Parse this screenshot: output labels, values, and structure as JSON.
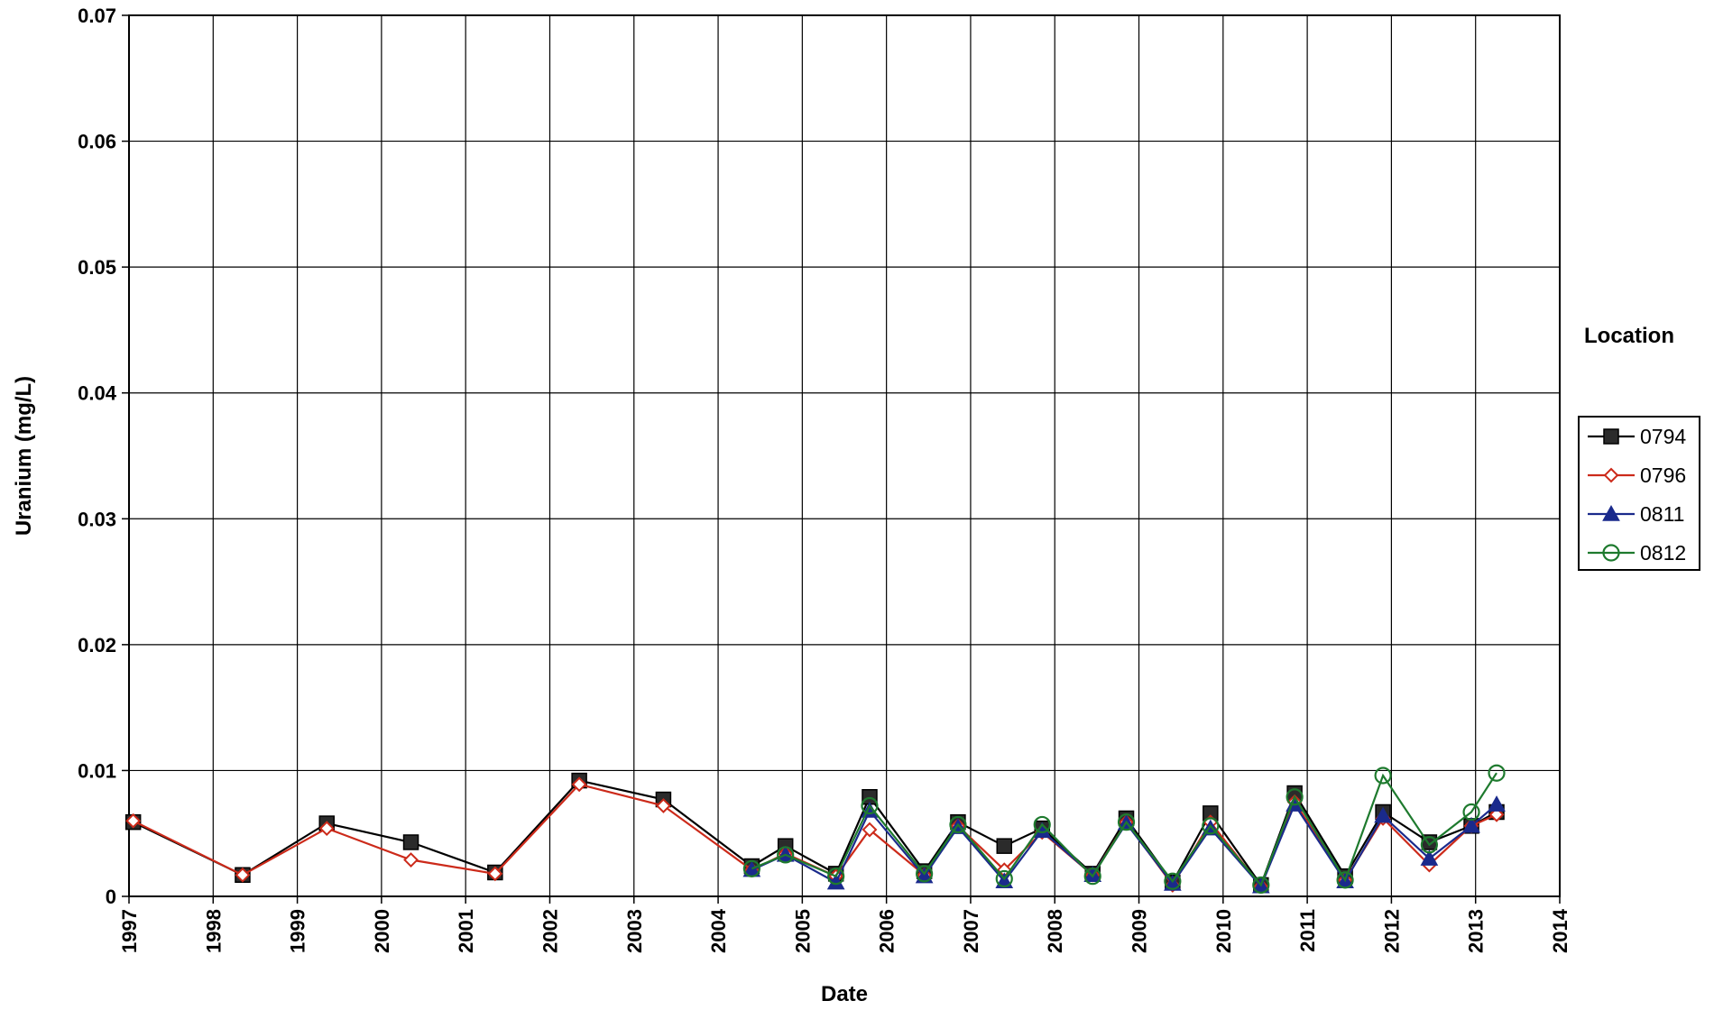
{
  "chart_data": {
    "type": "line",
    "title": "",
    "xlabel": "Date",
    "ylabel": "Uranium (mg/L)",
    "xlim": [
      1997,
      2014
    ],
    "ylim": [
      0,
      0.07
    ],
    "x_ticks": [
      "1997",
      "1998",
      "1999",
      "2000",
      "2001",
      "2002",
      "2003",
      "2004",
      "2005",
      "2006",
      "2007",
      "2008",
      "2009",
      "2010",
      "2011",
      "2012",
      "2013",
      "2014"
    ],
    "y_ticks": [
      {
        "value": 0,
        "label": "0"
      },
      {
        "value": 0.01,
        "label": "0.01"
      },
      {
        "value": 0.02,
        "label": "0.02"
      },
      {
        "value": 0.03,
        "label": "0.03"
      },
      {
        "value": 0.04,
        "label": "0.04"
      },
      {
        "value": 0.05,
        "label": "0.05"
      },
      {
        "value": 0.06,
        "label": "0.06"
      },
      {
        "value": 0.07,
        "label": "0.07"
      }
    ],
    "grid": true,
    "legend": {
      "title": "Location",
      "position": "right"
    },
    "series": [
      {
        "name": "0794",
        "color": "#000000",
        "marker": "filled-square",
        "points": [
          [
            1997.05,
            0.0059
          ],
          [
            1998.35,
            0.0017
          ],
          [
            1999.35,
            0.0058
          ],
          [
            2000.35,
            0.0043
          ],
          [
            2001.35,
            0.0019
          ],
          [
            2002.35,
            0.0092
          ],
          [
            2003.35,
            0.0077
          ],
          [
            2004.4,
            0.0024
          ],
          [
            2004.8,
            0.004
          ],
          [
            2005.4,
            0.0018
          ],
          [
            2005.8,
            0.0079
          ],
          [
            2006.45,
            0.002
          ],
          [
            2006.85,
            0.0059
          ],
          [
            2007.4,
            0.004
          ],
          [
            2007.85,
            0.0054
          ],
          [
            2008.45,
            0.0018
          ],
          [
            2008.85,
            0.0062
          ],
          [
            2009.4,
            0.0011
          ],
          [
            2009.85,
            0.0066
          ],
          [
            2010.45,
            0.0009
          ],
          [
            2010.85,
            0.0082
          ],
          [
            2011.45,
            0.0016
          ],
          [
            2011.9,
            0.0067
          ],
          [
            2012.45,
            0.0043
          ],
          [
            2012.95,
            0.0056
          ],
          [
            2013.25,
            0.0067
          ]
        ]
      },
      {
        "name": "0796",
        "color": "#cc2a1a",
        "marker": "open-diamond",
        "points": [
          [
            1997.05,
            0.006
          ],
          [
            1998.35,
            0.0017
          ],
          [
            1999.35,
            0.0054
          ],
          [
            2000.35,
            0.0029
          ],
          [
            2001.35,
            0.0018
          ],
          [
            2002.35,
            0.0089
          ],
          [
            2003.35,
            0.0072
          ],
          [
            2004.4,
            0.0021
          ],
          [
            2004.8,
            0.0034
          ],
          [
            2005.4,
            0.0016
          ],
          [
            2005.8,
            0.0053
          ],
          [
            2006.45,
            0.0017
          ],
          [
            2006.85,
            0.0056
          ],
          [
            2007.4,
            0.0021
          ],
          [
            2007.85,
            0.0051
          ],
          [
            2008.45,
            0.0017
          ],
          [
            2008.85,
            0.0059
          ],
          [
            2009.4,
            0.0009
          ],
          [
            2009.85,
            0.0059
          ],
          [
            2010.45,
            0.0008
          ],
          [
            2010.85,
            0.0075
          ],
          [
            2011.45,
            0.0013
          ],
          [
            2011.9,
            0.0062
          ],
          [
            2012.45,
            0.0025
          ],
          [
            2012.95,
            0.0056
          ],
          [
            2013.25,
            0.0065
          ]
        ]
      },
      {
        "name": "0811",
        "color": "#1a2a8c",
        "marker": "filled-triangle",
        "points": [
          [
            2004.4,
            0.0021
          ],
          [
            2004.8,
            0.0033
          ],
          [
            2005.4,
            0.0011
          ],
          [
            2005.8,
            0.0068
          ],
          [
            2006.45,
            0.0016
          ],
          [
            2006.85,
            0.0055
          ],
          [
            2007.4,
            0.0012
          ],
          [
            2007.85,
            0.0052
          ],
          [
            2008.45,
            0.0017
          ],
          [
            2008.85,
            0.0058
          ],
          [
            2009.4,
            0.001
          ],
          [
            2009.85,
            0.0054
          ],
          [
            2010.45,
            0.0008
          ],
          [
            2010.85,
            0.0073
          ],
          [
            2011.45,
            0.0012
          ],
          [
            2011.9,
            0.0064
          ],
          [
            2012.45,
            0.003
          ],
          [
            2012.95,
            0.0056
          ],
          [
            2013.25,
            0.0073
          ]
        ]
      },
      {
        "name": "0812",
        "color": "#1e7a2e",
        "marker": "open-circle",
        "points": [
          [
            2004.4,
            0.0022
          ],
          [
            2004.8,
            0.0033
          ],
          [
            2005.4,
            0.0016
          ],
          [
            2005.8,
            0.0072
          ],
          [
            2006.45,
            0.0018
          ],
          [
            2006.85,
            0.0057
          ],
          [
            2007.4,
            0.0014
          ],
          [
            2007.85,
            0.0057
          ],
          [
            2008.45,
            0.0016
          ],
          [
            2008.85,
            0.0059
          ],
          [
            2009.4,
            0.0012
          ],
          [
            2009.85,
            0.0056
          ],
          [
            2010.45,
            0.0009
          ],
          [
            2010.85,
            0.0079
          ],
          [
            2011.45,
            0.0013
          ],
          [
            2011.9,
            0.0096
          ],
          [
            2012.45,
            0.0041
          ],
          [
            2012.95,
            0.0067
          ],
          [
            2013.25,
            0.0098
          ]
        ]
      }
    ]
  }
}
